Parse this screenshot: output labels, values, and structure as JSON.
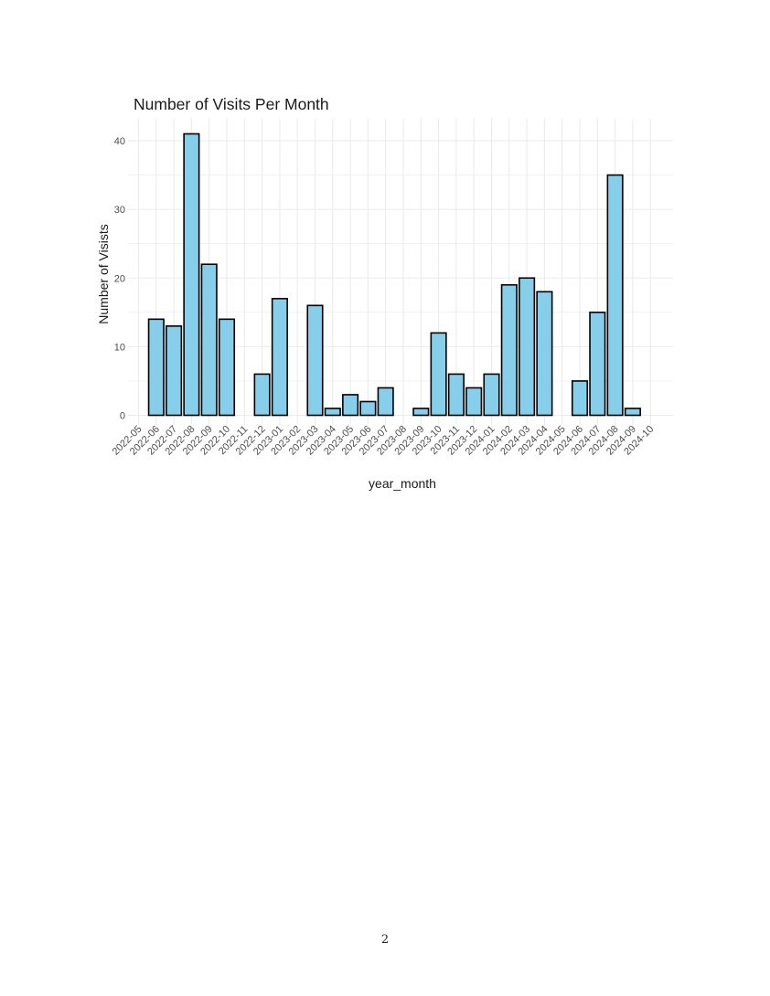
{
  "chart_data": {
    "type": "bar",
    "title": "Number of Visits Per Month",
    "xlabel": "year_month",
    "ylabel": "Number of Visists",
    "categories": [
      "2022-05",
      "2022-06",
      "2022-07",
      "2022-08",
      "2022-09",
      "2022-10",
      "2022-11",
      "2022-12",
      "2023-01",
      "2023-02",
      "2023-03",
      "2023-04",
      "2023-05",
      "2023-06",
      "2023-07",
      "2023-08",
      "2023-09",
      "2023-10",
      "2023-11",
      "2023-12",
      "2024-01",
      "2024-02",
      "2024-03",
      "2024-04",
      "2024-05",
      "2024-06",
      "2024-07",
      "2024-08",
      "2024-09",
      "2024-10"
    ],
    "values": [
      0,
      14,
      13,
      41,
      22,
      14,
      0,
      6,
      17,
      0,
      16,
      1,
      3,
      2,
      4,
      0,
      1,
      12,
      6,
      4,
      6,
      19,
      20,
      18,
      0,
      5,
      15,
      35,
      1,
      0
    ],
    "yticks": [
      0,
      10,
      20,
      30,
      40
    ],
    "ylim": [
      0,
      42
    ],
    "grid": true,
    "bar_fill": "#87CEEB",
    "bar_stroke": "#000000",
    "grid_color": "#ebebeb"
  },
  "page": {
    "number": "2"
  }
}
